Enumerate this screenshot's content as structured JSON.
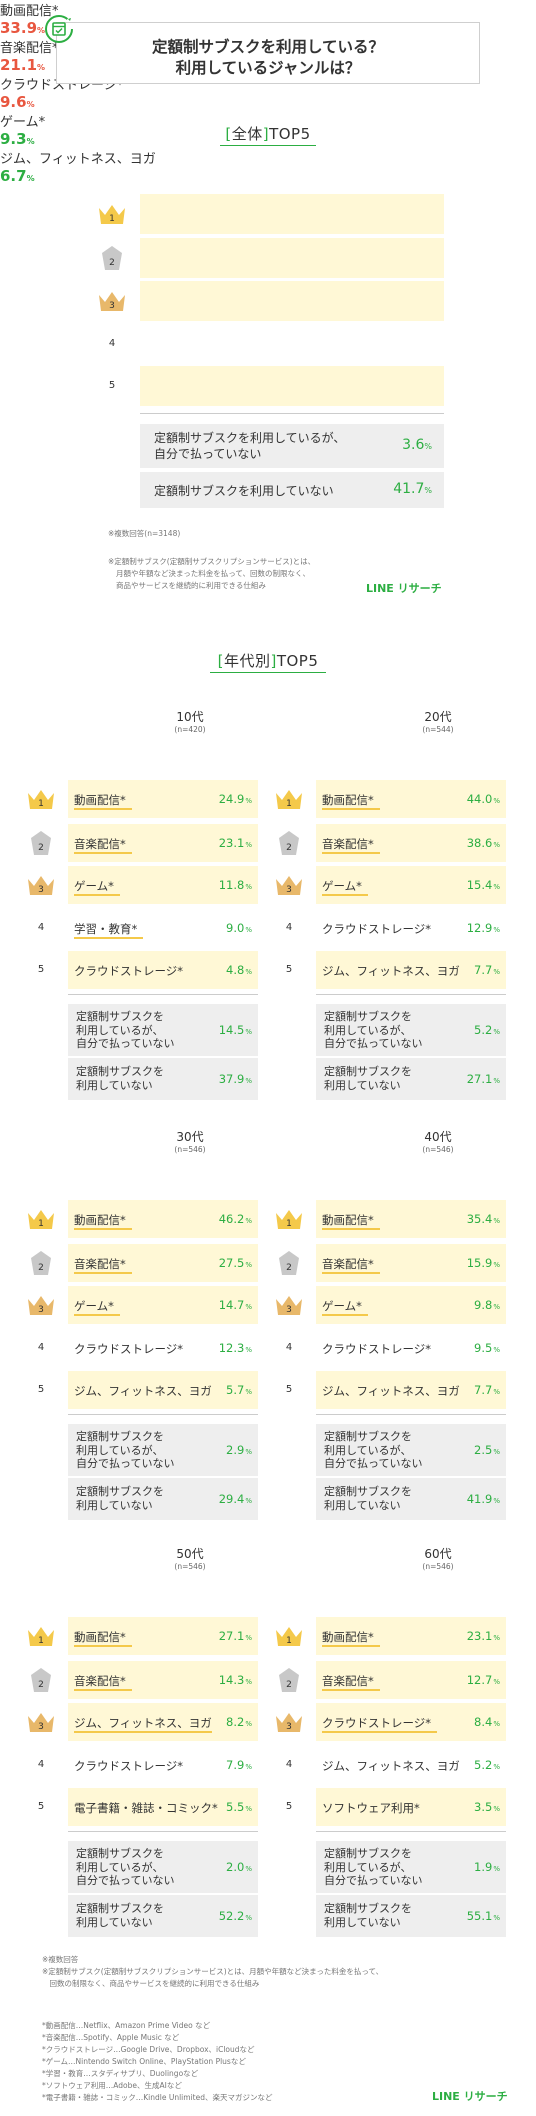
{
  "header": {
    "question_line1": "定額制サブスクを利用している？",
    "question_line2": "利用しているジャンルは？",
    "icon": "calendar-subscription-icon"
  },
  "colors": {
    "green": "#2cae42",
    "red": "#e8563f",
    "highlight": "#fff8d6",
    "gray_box": "#eeeeee",
    "gold": "#f4c94a",
    "silver": "#c8c8c8",
    "bronze": "#e8b86a"
  },
  "overall": {
    "title_bracket_open": "[",
    "title_main": "全体",
    "title_bracket_close": "]",
    "title_suffix": "TOP5",
    "unit": "%",
    "n_note": "※複数回答(n=3148)",
    "definition_note": [
      "※定額制サブスク(定額制サブスクリプションサービス)とは、",
      "月額や年額など決まった料金を払って、回数の制限なく、",
      "商品やサービスを継続的に利用できる仕組み"
    ],
    "logo": "LINE リサーチ"
  },
  "by_age": {
    "title_bracket_open": "[",
    "title_main": "年代別",
    "title_bracket_close": "]",
    "title_suffix": "TOP5",
    "groups": [
      {
        "age": "10代",
        "n": "(n=420)"
      },
      {
        "age": "20代",
        "n": "(n=544)"
      },
      {
        "age": "30代",
        "n": "(n=546)"
      },
      {
        "age": "40代",
        "n": "(n=546)"
      },
      {
        "age": "50代",
        "n": "(n=546)"
      },
      {
        "age": "60代",
        "n": "(n=546)"
      }
    ]
  },
  "footer": {
    "lines": [
      "※複数回答",
      "※定額制サブスク(定額制サブスクリプションサービス)とは、月額や年額など決まった料金を払って、",
      "　回数の制限なく、商品やサービスを継続的に利用できる仕組み",
      "",
      "*動画配信…Netflix、Amazon Prime Video など",
      "*音楽配信…Spotify、Apple Music など",
      "*クラウドストレージ…Google Drive、Dropbox、iCloudなど",
      "*ゲーム…Nintendo Switch Online、PlayStation Plusなど",
      "*学習・教育…スタディサプリ、Duolingoなど",
      "*ソフトウェア利用…Adobe、生成AIなど",
      "*電子書籍・雑誌・コミック…Kindle Unlimited、楽天マガジンなど"
    ],
    "logo": "LINE リサーチ"
  },
  "chart_data": [
    {
      "type": "table",
      "group": "全体",
      "unit": "%",
      "ranks": [
        {
          "rank": 1,
          "label": "動画配信*",
          "value": 33.9
        },
        {
          "rank": 2,
          "label": "音楽配信*",
          "value": 21.1
        },
        {
          "rank": 3,
          "label": "クラウドストレージ*",
          "value": 9.6
        },
        {
          "rank": 4,
          "label": "ゲーム*",
          "value": 9.3
        },
        {
          "rank": 5,
          "label": "ジム、フィットネス、ヨガ",
          "value": 6.7
        }
      ],
      "others": [
        {
          "label": "定額制サブスクを利用しているが、\n自分で払っていない",
          "value": 3.6
        },
        {
          "label": "定額制サブスクを利用していない",
          "value": 41.7
        }
      ]
    },
    {
      "type": "table",
      "group": "10代",
      "unit": "%",
      "ranks": [
        {
          "rank": 1,
          "label": "動画配信*",
          "value": 24.9
        },
        {
          "rank": 2,
          "label": "音楽配信*",
          "value": 23.1
        },
        {
          "rank": 3,
          "label": "ゲーム*",
          "value": 11.8
        },
        {
          "rank": 4,
          "label": "学習・教育*",
          "value": 9.0
        },
        {
          "rank": 5,
          "label": "クラウドストレージ*",
          "value": 4.8
        }
      ],
      "others": [
        {
          "label": "定額制サブスクを\n利用しているが、\n自分で払っていない",
          "value": 14.5
        },
        {
          "label": "定額制サブスクを\n利用していない",
          "value": 37.9
        }
      ]
    },
    {
      "type": "table",
      "group": "20代",
      "unit": "%",
      "ranks": [
        {
          "rank": 1,
          "label": "動画配信*",
          "value": 44.0
        },
        {
          "rank": 2,
          "label": "音楽配信*",
          "value": 38.6
        },
        {
          "rank": 3,
          "label": "ゲーム*",
          "value": 15.4
        },
        {
          "rank": 4,
          "label": "クラウドストレージ*",
          "value": 12.9
        },
        {
          "rank": 5,
          "label": "ジム、フィットネス、ヨガ",
          "value": 7.7
        }
      ],
      "others": [
        {
          "label": "定額制サブスクを\n利用しているが、\n自分で払っていない",
          "value": 5.2
        },
        {
          "label": "定額制サブスクを\n利用していない",
          "value": 27.1
        }
      ]
    },
    {
      "type": "table",
      "group": "30代",
      "unit": "%",
      "ranks": [
        {
          "rank": 1,
          "label": "動画配信*",
          "value": 46.2
        },
        {
          "rank": 2,
          "label": "音楽配信*",
          "value": 27.5
        },
        {
          "rank": 3,
          "label": "ゲーム*",
          "value": 14.7
        },
        {
          "rank": 4,
          "label": "クラウドストレージ*",
          "value": 12.3
        },
        {
          "rank": 5,
          "label": "ジム、フィットネス、ヨガ",
          "value": 5.7
        }
      ],
      "others": [
        {
          "label": "定額制サブスクを\n利用しているが、\n自分で払っていない",
          "value": 2.9
        },
        {
          "label": "定額制サブスクを\n利用していない",
          "value": 29.4
        }
      ]
    },
    {
      "type": "table",
      "group": "40代",
      "unit": "%",
      "ranks": [
        {
          "rank": 1,
          "label": "動画配信*",
          "value": 35.4
        },
        {
          "rank": 2,
          "label": "音楽配信*",
          "value": 15.9
        },
        {
          "rank": 3,
          "label": "ゲーム*",
          "value": 9.8
        },
        {
          "rank": 4,
          "label": "クラウドストレージ*",
          "value": 9.5
        },
        {
          "rank": 5,
          "label": "ジム、フィットネス、ヨガ",
          "value": 7.7
        }
      ],
      "others": [
        {
          "label": "定額制サブスクを\n利用しているが、\n自分で払っていない",
          "value": 2.5
        },
        {
          "label": "定額制サブスクを\n利用していない",
          "value": 41.9
        }
      ]
    },
    {
      "type": "table",
      "group": "50代",
      "unit": "%",
      "ranks": [
        {
          "rank": 1,
          "label": "動画配信*",
          "value": 27.1
        },
        {
          "rank": 2,
          "label": "音楽配信*",
          "value": 14.3
        },
        {
          "rank": 3,
          "label": "ジム、フィットネス、ヨガ",
          "value": 8.2
        },
        {
          "rank": 4,
          "label": "クラウドストレージ*",
          "value": 7.9
        },
        {
          "rank": 5,
          "label": "電子書籍・雑誌・コミック*",
          "value": 5.5
        }
      ],
      "others": [
        {
          "label": "定額制サブスクを\n利用しているが、\n自分で払っていない",
          "value": 2.0
        },
        {
          "label": "定額制サブスクを\n利用していない",
          "value": 52.2
        }
      ]
    },
    {
      "type": "table",
      "group": "60代",
      "unit": "%",
      "ranks": [
        {
          "rank": 1,
          "label": "動画配信*",
          "value": 23.1
        },
        {
          "rank": 2,
          "label": "音楽配信*",
          "value": 12.7
        },
        {
          "rank": 3,
          "label": "クラウドストレージ*",
          "value": 8.4
        },
        {
          "rank": 4,
          "label": "ジム、フィットネス、ヨガ",
          "value": 5.2
        },
        {
          "rank": 5,
          "label": "ソフトウェア利用*",
          "value": 3.5
        }
      ],
      "others": [
        {
          "label": "定額制サブスクを\n利用しているが、\n自分で払っていない",
          "value": 1.9
        },
        {
          "label": "定額制サブスクを\n利用していない",
          "value": 55.1
        }
      ]
    }
  ]
}
